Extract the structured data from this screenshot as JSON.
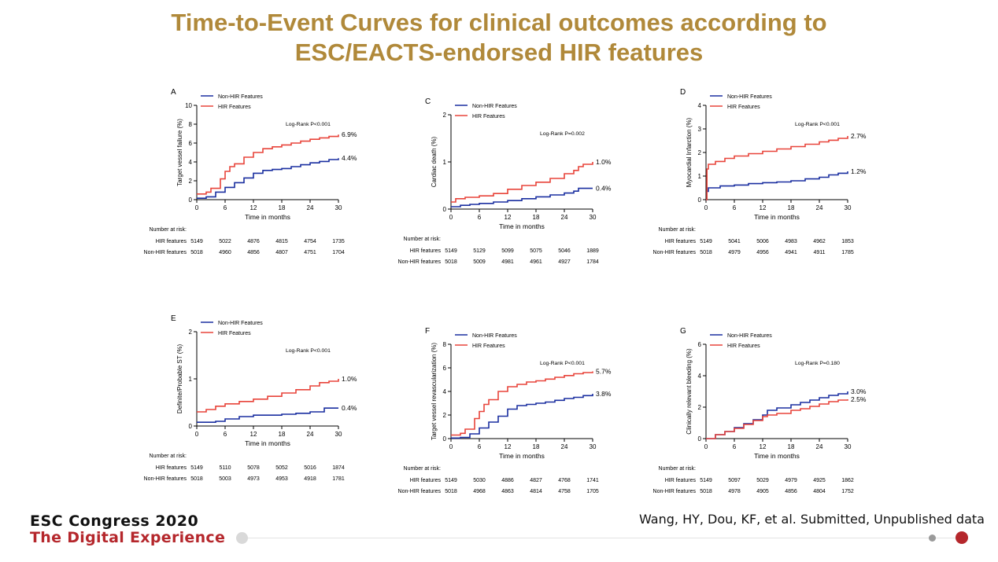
{
  "slide": {
    "title_line1": "Time-to-Event Curves for clinical outcomes according to",
    "title_line2": "ESC/EACTS-endorsed HIR features",
    "footer_line1": "ESC Congress 2020",
    "footer_line2": "The Digital Experience",
    "citation": "Wang, HY, Dou, KF, et al. Submitted, Unpublished data"
  },
  "colors": {
    "non_hir": "#1a2fa0",
    "hir": "#e8443a",
    "title": "#b0893a",
    "brand_red": "#b5272c"
  },
  "risk_table": {
    "header": "Number at risk:",
    "row1_label": "HIR features",
    "row2_label": "Non-HIR features"
  },
  "chart_data": [
    {
      "letter": "A",
      "type": "line",
      "ylabel": "Target vessel failure (%)",
      "xlabel": "Time in months",
      "ylim": [
        0,
        10
      ],
      "yticks": [
        0,
        2,
        4,
        6,
        8,
        10
      ],
      "xlim": [
        0,
        30
      ],
      "xticks": [
        0,
        6,
        12,
        18,
        24,
        30
      ],
      "pvalue": "Log-Rank P<0.001",
      "legend_position": "top-left",
      "series": [
        {
          "name": "Non-HIR Features",
          "end_label": "4.4%",
          "points": [
            [
              0,
              0.15
            ],
            [
              2,
              0.3
            ],
            [
              4,
              0.8
            ],
            [
              6,
              1.3
            ],
            [
              8,
              1.8
            ],
            [
              10,
              2.3
            ],
            [
              12,
              2.8
            ],
            [
              14,
              3.1
            ],
            [
              16,
              3.2
            ],
            [
              18,
              3.3
            ],
            [
              20,
              3.5
            ],
            [
              22,
              3.7
            ],
            [
              24,
              3.9
            ],
            [
              26,
              4.05
            ],
            [
              28,
              4.25
            ],
            [
              30,
              4.4
            ]
          ]
        },
        {
          "name": "HIR Features",
          "end_label": "6.9%",
          "points": [
            [
              0,
              0.6
            ],
            [
              2,
              0.8
            ],
            [
              3,
              1.2
            ],
            [
              5,
              2.2
            ],
            [
              6,
              3.0
            ],
            [
              7,
              3.5
            ],
            [
              8,
              3.8
            ],
            [
              10,
              4.5
            ],
            [
              12,
              5.0
            ],
            [
              14,
              5.4
            ],
            [
              16,
              5.6
            ],
            [
              18,
              5.8
            ],
            [
              20,
              6.0
            ],
            [
              22,
              6.2
            ],
            [
              24,
              6.4
            ],
            [
              26,
              6.55
            ],
            [
              28,
              6.7
            ],
            [
              30,
              6.9
            ]
          ]
        }
      ],
      "risk": {
        "hir": [
          "5149",
          "5022",
          "4876",
          "4815",
          "4754",
          "1735"
        ],
        "non_hir": [
          "5018",
          "4960",
          "4856",
          "4807",
          "4751",
          "1704"
        ]
      }
    },
    {
      "letter": "C",
      "type": "line",
      "ylabel": "Cardiac death (%)",
      "xlabel": "Time in months",
      "ylim": [
        0,
        2
      ],
      "yticks": [
        0,
        1,
        2
      ],
      "xlim": [
        0,
        30
      ],
      "xticks": [
        0,
        6,
        12,
        18,
        24,
        30
      ],
      "pvalue": "Log-Rank P=0.002",
      "legend_position": "top-left",
      "series": [
        {
          "name": "Non-HIR Features",
          "end_label": "0.4%",
          "points": [
            [
              0,
              0.05
            ],
            [
              2,
              0.08
            ],
            [
              4,
              0.1
            ],
            [
              6,
              0.12
            ],
            [
              9,
              0.15
            ],
            [
              12,
              0.18
            ],
            [
              15,
              0.22
            ],
            [
              18,
              0.26
            ],
            [
              21,
              0.3
            ],
            [
              24,
              0.34
            ],
            [
              26,
              0.38
            ],
            [
              27,
              0.44
            ],
            [
              30,
              0.44
            ]
          ]
        },
        {
          "name": "HIR Features",
          "end_label": "1.0%",
          "points": [
            [
              0,
              0.15
            ],
            [
              1,
              0.22
            ],
            [
              3,
              0.25
            ],
            [
              6,
              0.28
            ],
            [
              9,
              0.33
            ],
            [
              12,
              0.42
            ],
            [
              15,
              0.5
            ],
            [
              18,
              0.57
            ],
            [
              21,
              0.65
            ],
            [
              24,
              0.75
            ],
            [
              26,
              0.82
            ],
            [
              27,
              0.9
            ],
            [
              28,
              0.95
            ],
            [
              30,
              1.0
            ]
          ]
        }
      ],
      "risk": {
        "hir": [
          "5149",
          "5129",
          "5099",
          "5075",
          "5046",
          "1889"
        ],
        "non_hir": [
          "5018",
          "5009",
          "4981",
          "4961",
          "4927",
          "1784"
        ]
      }
    },
    {
      "letter": "D",
      "type": "line",
      "ylabel": "Myocardial Infarction (%)",
      "xlabel": "Time in months",
      "ylim": [
        0,
        4
      ],
      "yticks": [
        0,
        1,
        2,
        3,
        4
      ],
      "xlim": [
        0,
        30
      ],
      "xticks": [
        0,
        6,
        12,
        18,
        24,
        30
      ],
      "pvalue": "Log-Rank P<0.001",
      "legend_position": "top-left",
      "series": [
        {
          "name": "Non-HIR Features",
          "end_label": "1.2%",
          "points": [
            [
              0,
              0
            ],
            [
              0.2,
              0.35
            ],
            [
              0.5,
              0.5
            ],
            [
              3,
              0.58
            ],
            [
              6,
              0.62
            ],
            [
              9,
              0.68
            ],
            [
              12,
              0.72
            ],
            [
              15,
              0.75
            ],
            [
              18,
              0.8
            ],
            [
              21,
              0.88
            ],
            [
              24,
              0.95
            ],
            [
              26,
              1.05
            ],
            [
              28,
              1.12
            ],
            [
              30,
              1.2
            ]
          ]
        },
        {
          "name": "HIR Features",
          "end_label": "2.7%",
          "points": [
            [
              0,
              0
            ],
            [
              0.2,
              1.3
            ],
            [
              0.5,
              1.5
            ],
            [
              2,
              1.62
            ],
            [
              4,
              1.75
            ],
            [
              6,
              1.85
            ],
            [
              9,
              1.95
            ],
            [
              12,
              2.05
            ],
            [
              15,
              2.15
            ],
            [
              18,
              2.25
            ],
            [
              21,
              2.35
            ],
            [
              24,
              2.45
            ],
            [
              26,
              2.52
            ],
            [
              28,
              2.6
            ],
            [
              30,
              2.7
            ]
          ]
        }
      ],
      "risk": {
        "hir": [
          "5149",
          "5041",
          "5006",
          "4983",
          "4962",
          "1853"
        ],
        "non_hir": [
          "5018",
          "4979",
          "4956",
          "4941",
          "4911",
          "1785"
        ]
      }
    },
    {
      "letter": "E",
      "type": "line",
      "ylabel": "Definite/Probable ST (%)",
      "xlabel": "Time in months",
      "ylim": [
        0,
        2
      ],
      "yticks": [
        0,
        1,
        2
      ],
      "xlim": [
        0,
        30
      ],
      "xticks": [
        0,
        6,
        12,
        18,
        24,
        30
      ],
      "pvalue": "Log-Rank P<0.001",
      "legend_position": "top-left",
      "series": [
        {
          "name": "Non-HIR Features",
          "end_label": "0.4%",
          "points": [
            [
              0,
              0.08
            ],
            [
              4,
              0.1
            ],
            [
              6,
              0.15
            ],
            [
              9,
              0.2
            ],
            [
              12,
              0.23
            ],
            [
              18,
              0.25
            ],
            [
              21,
              0.27
            ],
            [
              24,
              0.3
            ],
            [
              27,
              0.38
            ],
            [
              30,
              0.38
            ]
          ]
        },
        {
          "name": "HIR Features",
          "end_label": "1.0%",
          "points": [
            [
              0,
              0.3
            ],
            [
              2,
              0.35
            ],
            [
              4,
              0.42
            ],
            [
              6,
              0.47
            ],
            [
              9,
              0.52
            ],
            [
              12,
              0.57
            ],
            [
              15,
              0.63
            ],
            [
              18,
              0.7
            ],
            [
              21,
              0.77
            ],
            [
              24,
              0.85
            ],
            [
              26,
              0.92
            ],
            [
              28,
              0.95
            ],
            [
              29,
              0.95
            ],
            [
              30,
              1.0
            ]
          ]
        }
      ],
      "risk": {
        "hir": [
          "5149",
          "5110",
          "5078",
          "5052",
          "5016",
          "1874"
        ],
        "non_hir": [
          "5018",
          "5003",
          "4973",
          "4953",
          "4918",
          "1781"
        ]
      }
    },
    {
      "letter": "F",
      "type": "line",
      "ylabel": "Target vessel revascularization (%)",
      "xlabel": "Time in months",
      "ylim": [
        0,
        8
      ],
      "yticks": [
        0,
        2,
        4,
        6,
        8
      ],
      "xlim": [
        0,
        30
      ],
      "xticks": [
        0,
        6,
        12,
        18,
        24,
        30
      ],
      "pvalue": "Log-Rank P<0.001",
      "legend_position": "top-left",
      "series": [
        {
          "name": "Non-HIR Features",
          "end_label": "3.8%",
          "points": [
            [
              0,
              0.05
            ],
            [
              2,
              0.1
            ],
            [
              4,
              0.4
            ],
            [
              6,
              0.9
            ],
            [
              8,
              1.4
            ],
            [
              10,
              1.9
            ],
            [
              12,
              2.5
            ],
            [
              14,
              2.8
            ],
            [
              16,
              2.9
            ],
            [
              18,
              3.0
            ],
            [
              20,
              3.1
            ],
            [
              22,
              3.25
            ],
            [
              24,
              3.4
            ],
            [
              26,
              3.5
            ],
            [
              28,
              3.65
            ],
            [
              30,
              3.8
            ]
          ]
        },
        {
          "name": "HIR Features",
          "end_label": "5.7%",
          "points": [
            [
              0,
              0.3
            ],
            [
              2,
              0.45
            ],
            [
              3,
              0.8
            ],
            [
              5,
              1.7
            ],
            [
              6,
              2.3
            ],
            [
              7,
              2.9
            ],
            [
              8,
              3.3
            ],
            [
              10,
              4.0
            ],
            [
              12,
              4.4
            ],
            [
              14,
              4.6
            ],
            [
              16,
              4.8
            ],
            [
              18,
              4.9
            ],
            [
              20,
              5.05
            ],
            [
              22,
              5.2
            ],
            [
              24,
              5.35
            ],
            [
              26,
              5.5
            ],
            [
              28,
              5.6
            ],
            [
              30,
              5.7
            ]
          ]
        }
      ],
      "risk": {
        "hir": [
          "5149",
          "5030",
          "4886",
          "4827",
          "4768",
          "1741"
        ],
        "non_hir": [
          "5018",
          "4968",
          "4863",
          "4814",
          "4758",
          "1705"
        ]
      }
    },
    {
      "letter": "G",
      "type": "line",
      "ylabel": "Clinically relevant bleeding (%)",
      "xlabel": "Time in months",
      "ylim": [
        0,
        6
      ],
      "yticks": [
        0,
        2,
        4,
        6
      ],
      "xlim": [
        0,
        30
      ],
      "xticks": [
        0,
        6,
        12,
        18,
        24,
        30
      ],
      "pvalue": "Log-Rank P=0.180",
      "legend_position": "top-left",
      "series": [
        {
          "name": "Non-HIR Features",
          "end_label": "3.0%",
          "points": [
            [
              0,
              0
            ],
            [
              2,
              0.25
            ],
            [
              4,
              0.45
            ],
            [
              6,
              0.7
            ],
            [
              8,
              0.95
            ],
            [
              10,
              1.2
            ],
            [
              12,
              1.5
            ],
            [
              13,
              1.8
            ],
            [
              15,
              1.95
            ],
            [
              18,
              2.15
            ],
            [
              20,
              2.3
            ],
            [
              22,
              2.45
            ],
            [
              24,
              2.6
            ],
            [
              26,
              2.75
            ],
            [
              28,
              2.85
            ],
            [
              30,
              3.0
            ]
          ]
        },
        {
          "name": "HIR Features",
          "end_label": "2.5%",
          "points": [
            [
              0,
              0
            ],
            [
              2,
              0.25
            ],
            [
              4,
              0.45
            ],
            [
              6,
              0.65
            ],
            [
              8,
              0.9
            ],
            [
              10,
              1.15
            ],
            [
              12,
              1.4
            ],
            [
              13,
              1.5
            ],
            [
              15,
              1.6
            ],
            [
              18,
              1.8
            ],
            [
              20,
              1.9
            ],
            [
              22,
              2.05
            ],
            [
              24,
              2.2
            ],
            [
              26,
              2.35
            ],
            [
              28,
              2.45
            ],
            [
              30,
              2.5
            ]
          ]
        }
      ],
      "risk": {
        "hir": [
          "5149",
          "5097",
          "5029",
          "4979",
          "4925",
          "1862"
        ],
        "non_hir": [
          "5018",
          "4978",
          "4905",
          "4856",
          "4804",
          "1752"
        ]
      }
    }
  ]
}
